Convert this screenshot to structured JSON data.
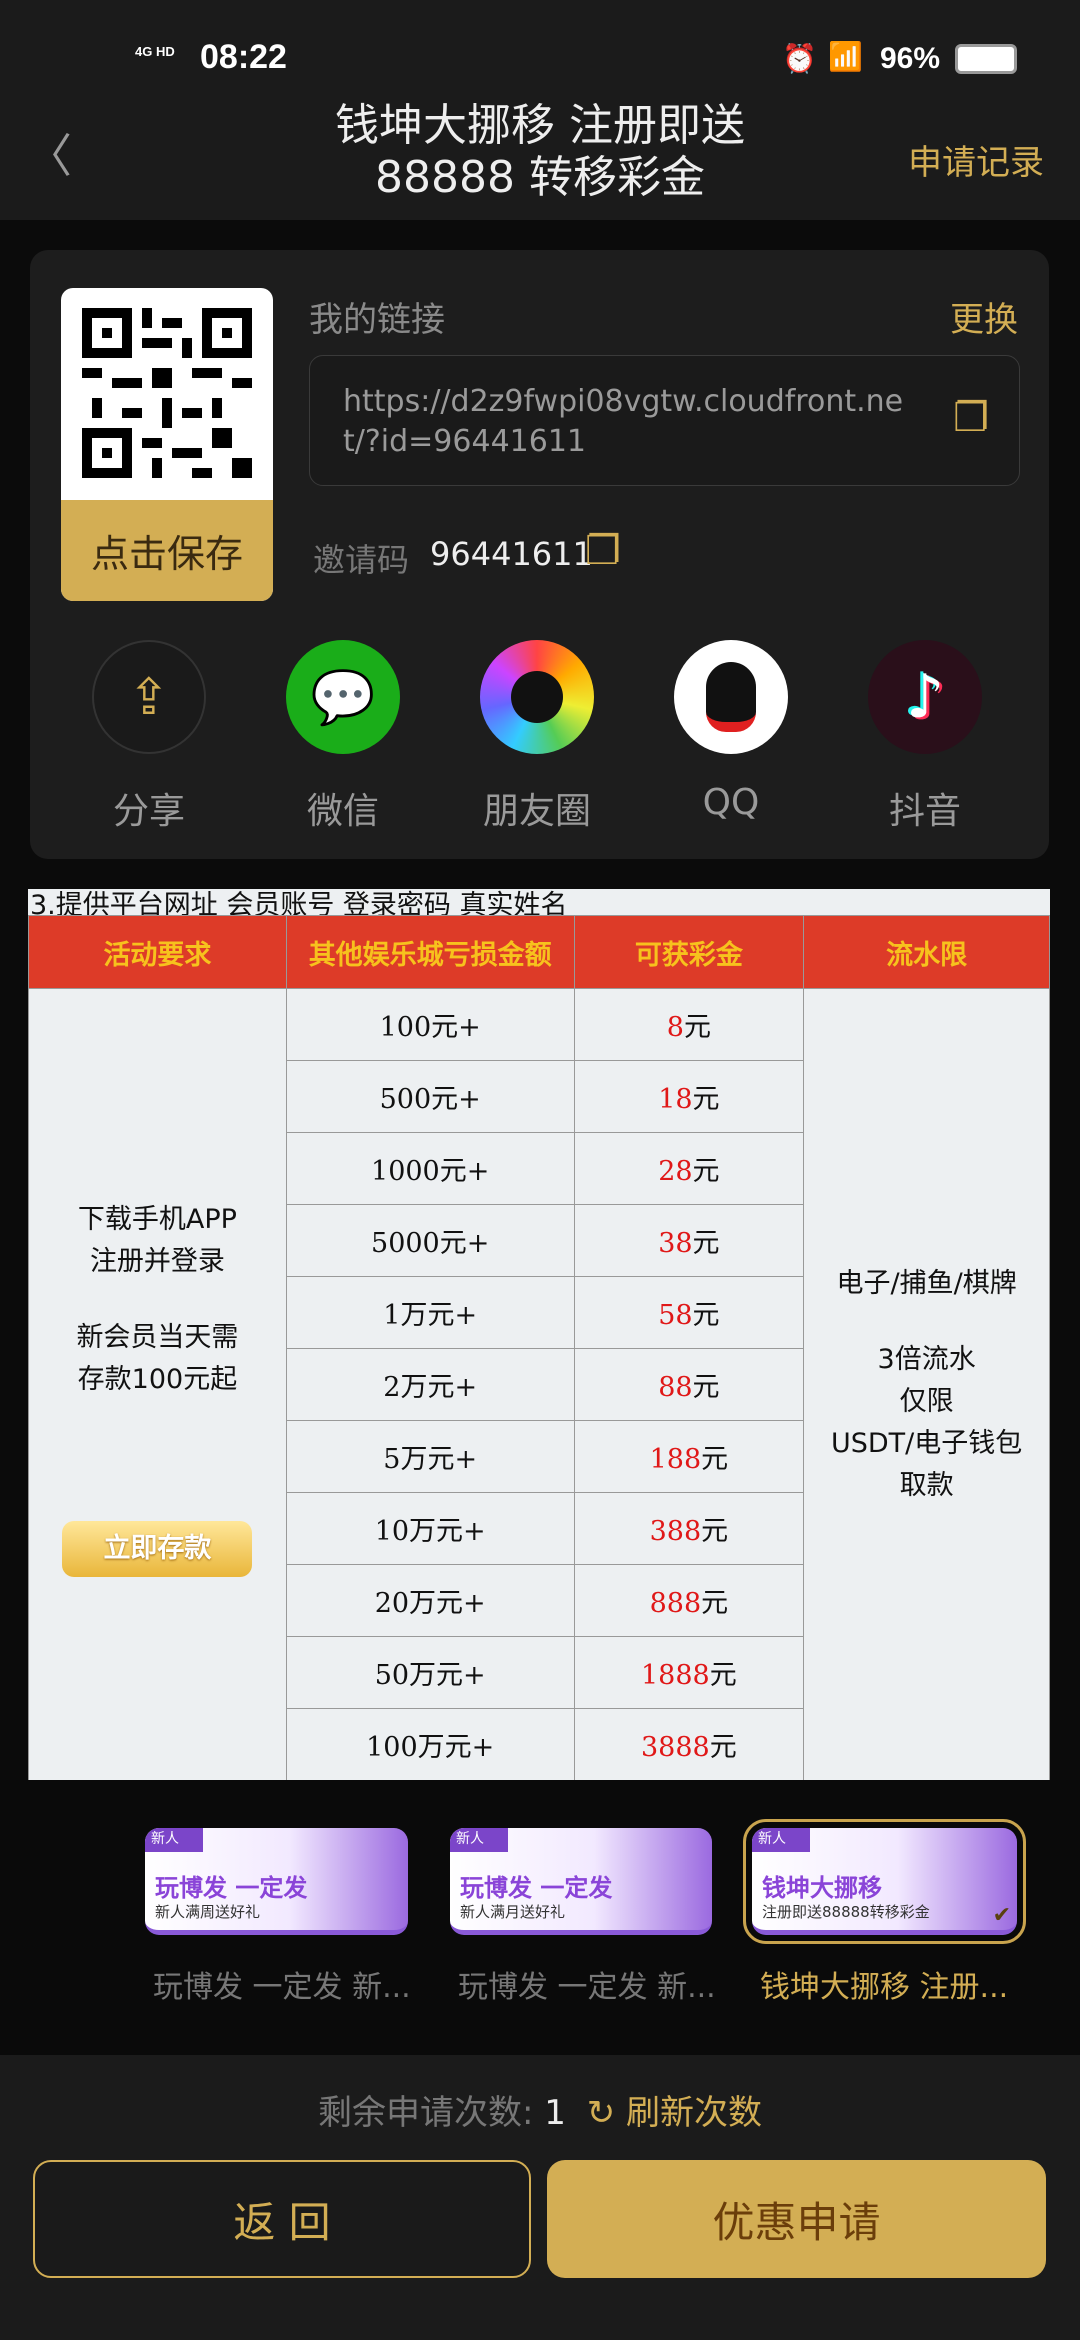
{
  "status": {
    "network": "4G HD",
    "time": "08:22",
    "battery": "96%"
  },
  "header": {
    "title_line1": "钱坤大挪移  注册即送",
    "title_line2": "88888 转移彩金",
    "records": "申请记录"
  },
  "card": {
    "qr_save": "点击保存",
    "my_link_label": "我的链接",
    "change": "更换",
    "link": "https://d2z9fwpi08vgtw.cloudfront.net/?id=96441611",
    "invite_label": "邀请码",
    "invite_code": "96441611",
    "share": [
      {
        "label": "分享",
        "icon": "share-icon"
      },
      {
        "label": "微信",
        "icon": "wechat-icon"
      },
      {
        "label": "朋友圈",
        "icon": "moments-icon"
      },
      {
        "label": "QQ",
        "icon": "qq-icon"
      },
      {
        "label": "抖音",
        "icon": "douyin-icon"
      }
    ]
  },
  "table": {
    "intro": "3.提供平台网址 会员账号 登录密码 真实姓名",
    "headers": [
      "活动要求",
      "其他娱乐城亏损金额",
      "可获彩金",
      "流水限"
    ],
    "requirement": [
      "下载手机APP",
      "注册并登录",
      "新会员当天需",
      "存款100元起"
    ],
    "deposit_button": "立即存款",
    "rows": [
      [
        "100元+",
        "8"
      ],
      [
        "500元+",
        "18"
      ],
      [
        "1000元+",
        "28"
      ],
      [
        "5000元+",
        "38"
      ],
      [
        "1万元+",
        "58"
      ],
      [
        "2万元+",
        "88"
      ],
      [
        "5万元+",
        "188"
      ],
      [
        "10万元+",
        "388"
      ],
      [
        "20万元+",
        "888"
      ],
      [
        "50万元+",
        "1888"
      ],
      [
        "100万元+",
        "3888"
      ]
    ],
    "unit": "元",
    "limit": [
      "电子/捕鱼/棋牌",
      "3倍流水",
      "仅限",
      "USDT/电子钱包",
      "取款"
    ]
  },
  "promos": [
    {
      "tag": "新人",
      "title": "玩博发 一定发",
      "subtitle": "新人满周送好礼",
      "label": "玩博发 一定发 新...",
      "selected": false
    },
    {
      "tag": "新人",
      "title": "玩博发 一定发",
      "subtitle": "新人满月送好礼",
      "label": "玩博发 一定发 新...",
      "selected": false
    },
    {
      "tag": "新人",
      "title": "钱坤大挪移",
      "subtitle": "注册即送88888转移彩金",
      "label": "钱坤大挪移  注册...",
      "selected": true
    }
  ],
  "footer": {
    "remaining_label": "剩余申请次数:",
    "remaining": "1",
    "refresh": "刷新次数",
    "back": "返 回",
    "apply": "优惠申请"
  },
  "colors": {
    "gold": "#d3ae54",
    "header_red": "#dd3b28",
    "amount_red": "#e01818"
  }
}
